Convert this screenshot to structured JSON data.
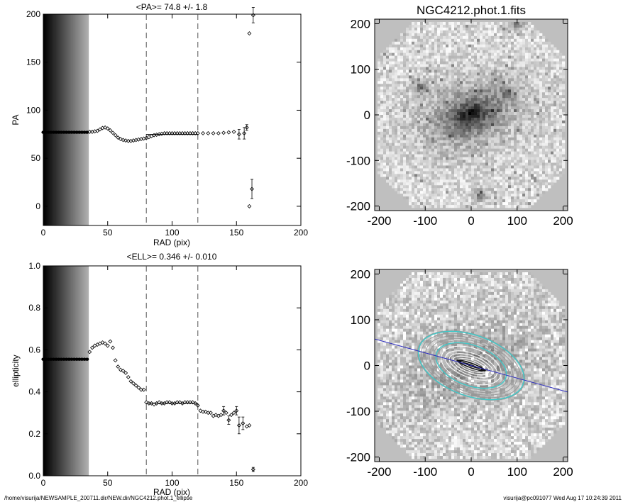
{
  "chart_data": [
    {
      "type": "scatter",
      "title": "<PA>=  74.8 +/-   1.8",
      "xlabel": "RAD (pix)",
      "ylabel": "PA",
      "xlim": [
        0,
        200
      ],
      "ylim": [
        -20,
        200
      ],
      "xticks": [
        "0",
        "50",
        "100",
        "150",
        "200"
      ],
      "yticks": [
        "0",
        "50",
        "100",
        "150",
        "200"
      ],
      "xticks_values": [
        0,
        50,
        100,
        150,
        200
      ],
      "yticks_values": [
        0,
        50,
        100,
        150,
        200
      ],
      "vlines": [
        80,
        120
      ],
      "mean_line": {
        "x": [
          80,
          120
        ],
        "y": 74.8
      },
      "shade_xrange": [
        0,
        35
      ],
      "points": [
        [
          0,
          77
        ],
        [
          2,
          77
        ],
        [
          4,
          77
        ],
        [
          6,
          77
        ],
        [
          8,
          77
        ],
        [
          10,
          77
        ],
        [
          12,
          77
        ],
        [
          14,
          77
        ],
        [
          16,
          77
        ],
        [
          18,
          77
        ],
        [
          20,
          77
        ],
        [
          22,
          77
        ],
        [
          24,
          77
        ],
        [
          26,
          77
        ],
        [
          28,
          77
        ],
        [
          30,
          77
        ],
        [
          32,
          77
        ],
        [
          34,
          77
        ],
        [
          36,
          77.5
        ],
        [
          38,
          77.5
        ],
        [
          40,
          78
        ],
        [
          42,
          78.5
        ],
        [
          44,
          80
        ],
        [
          46,
          81.5
        ],
        [
          48,
          82
        ],
        [
          50,
          81
        ],
        [
          52,
          79
        ],
        [
          54,
          76.5
        ],
        [
          56,
          74
        ],
        [
          58,
          71.5
        ],
        [
          60,
          70
        ],
        [
          62,
          69
        ],
        [
          64,
          68.5
        ],
        [
          66,
          68
        ],
        [
          68,
          68
        ],
        [
          70,
          68.5
        ],
        [
          72,
          69
        ],
        [
          74,
          69.5
        ],
        [
          76,
          70
        ],
        [
          78,
          70.5
        ],
        [
          80,
          71
        ],
        [
          82,
          72
        ],
        [
          84,
          73
        ],
        [
          86,
          74
        ],
        [
          88,
          74.5
        ],
        [
          90,
          75
        ],
        [
          92,
          75.5
        ],
        [
          94,
          76
        ],
        [
          96,
          76
        ],
        [
          98,
          76
        ],
        [
          100,
          76
        ],
        [
          102,
          76
        ],
        [
          104,
          76
        ],
        [
          106,
          76
        ],
        [
          108,
          76
        ],
        [
          110,
          76
        ],
        [
          112,
          76
        ],
        [
          114,
          76
        ],
        [
          116,
          76
        ],
        [
          118,
          76
        ],
        [
          120,
          76
        ],
        [
          124,
          76
        ],
        [
          128,
          76
        ],
        [
          132,
          76
        ],
        [
          136,
          76
        ],
        [
          140,
          76.5
        ],
        [
          144,
          77
        ],
        [
          148,
          77.5
        ],
        [
          152,
          75
        ],
        [
          156,
          76
        ],
        [
          158,
          82
        ],
        [
          160,
          0
        ],
        [
          160,
          180
        ],
        [
          162,
          18
        ],
        [
          163,
          199
        ]
      ],
      "errorbars": [
        [
          152,
          75,
          5
        ],
        [
          156,
          76,
          6
        ],
        [
          158,
          82,
          3
        ],
        [
          162,
          18,
          10
        ],
        [
          163,
          199,
          8
        ]
      ]
    },
    {
      "type": "scatter",
      "title": "<ELL>= 0.346 +/-  0.010",
      "xlabel": "RAD (pix)",
      "ylabel": "ellipticity",
      "xlim": [
        0,
        200
      ],
      "ylim": [
        0.0,
        1.0
      ],
      "xticks": [
        "0",
        "50",
        "100",
        "150",
        "200"
      ],
      "yticks": [
        "0.0",
        "0.2",
        "0.4",
        "0.6",
        "0.8",
        "1.0"
      ],
      "xticks_values": [
        0,
        50,
        100,
        150,
        200
      ],
      "yticks_values": [
        0.0,
        0.2,
        0.4,
        0.6,
        0.8,
        1.0
      ],
      "vlines": [
        80,
        120
      ],
      "mean_line": {
        "x": [
          80,
          120
        ],
        "y": 0.346
      },
      "shade_xrange": [
        0,
        35
      ],
      "points": [
        [
          0,
          0.555
        ],
        [
          2,
          0.555
        ],
        [
          4,
          0.555
        ],
        [
          6,
          0.555
        ],
        [
          8,
          0.555
        ],
        [
          10,
          0.555
        ],
        [
          12,
          0.555
        ],
        [
          14,
          0.555
        ],
        [
          16,
          0.555
        ],
        [
          18,
          0.555
        ],
        [
          20,
          0.555
        ],
        [
          22,
          0.555
        ],
        [
          24,
          0.555
        ],
        [
          26,
          0.555
        ],
        [
          28,
          0.555
        ],
        [
          30,
          0.555
        ],
        [
          32,
          0.555
        ],
        [
          34,
          0.555
        ],
        [
          36,
          0.59
        ],
        [
          38,
          0.61
        ],
        [
          40,
          0.62
        ],
        [
          42,
          0.625
        ],
        [
          44,
          0.63
        ],
        [
          46,
          0.635
        ],
        [
          48,
          0.63
        ],
        [
          50,
          0.62
        ],
        [
          52,
          0.64
        ],
        [
          54,
          0.61
        ],
        [
          56,
          0.55
        ],
        [
          58,
          0.52
        ],
        [
          60,
          0.505
        ],
        [
          62,
          0.5
        ],
        [
          64,
          0.49
        ],
        [
          66,
          0.47
        ],
        [
          68,
          0.45
        ],
        [
          70,
          0.44
        ],
        [
          72,
          0.43
        ],
        [
          74,
          0.42
        ],
        [
          76,
          0.41
        ],
        [
          78,
          0.41
        ],
        [
          80,
          0.35
        ],
        [
          82,
          0.345
        ],
        [
          84,
          0.345
        ],
        [
          86,
          0.34
        ],
        [
          88,
          0.345
        ],
        [
          90,
          0.35
        ],
        [
          92,
          0.345
        ],
        [
          94,
          0.345
        ],
        [
          96,
          0.35
        ],
        [
          98,
          0.35
        ],
        [
          100,
          0.345
        ],
        [
          102,
          0.345
        ],
        [
          104,
          0.35
        ],
        [
          106,
          0.35
        ],
        [
          108,
          0.345
        ],
        [
          110,
          0.35
        ],
        [
          112,
          0.35
        ],
        [
          114,
          0.35
        ],
        [
          116,
          0.35
        ],
        [
          118,
          0.345
        ],
        [
          120,
          0.335
        ],
        [
          122,
          0.31
        ],
        [
          124,
          0.305
        ],
        [
          126,
          0.305
        ],
        [
          128,
          0.3
        ],
        [
          130,
          0.3
        ],
        [
          132,
          0.285
        ],
        [
          134,
          0.29
        ],
        [
          136,
          0.285
        ],
        [
          138,
          0.29
        ],
        [
          140,
          0.31
        ],
        [
          142,
          0.3
        ],
        [
          144,
          0.265
        ],
        [
          146,
          0.29
        ],
        [
          148,
          0.3
        ],
        [
          150,
          0.31
        ],
        [
          152,
          0.24
        ],
        [
          155,
          0.25
        ],
        [
          158,
          0.235
        ],
        [
          160,
          0.24
        ],
        [
          163,
          0.03
        ]
      ],
      "errorbars": [
        [
          140,
          0.31,
          0.02
        ],
        [
          144,
          0.265,
          0.02
        ],
        [
          150,
          0.31,
          0.02
        ],
        [
          152,
          0.24,
          0.04
        ],
        [
          155,
          0.25,
          0.03
        ],
        [
          163,
          0.03,
          0.01
        ]
      ]
    },
    {
      "type": "heatmap",
      "title": "NGC4212.phot.1.fits",
      "xlim": [
        -210,
        210
      ],
      "ylim": [
        -210,
        210
      ],
      "xticks": [
        "-200",
        "-100",
        "0",
        "100",
        "200"
      ],
      "yticks": [
        "-200",
        "-100",
        "0",
        "100",
        "200"
      ],
      "xticks_values": [
        -200,
        -100,
        0,
        100,
        200
      ],
      "yticks_values": [
        -200,
        -100,
        0,
        100,
        200
      ],
      "galaxy": {
        "center": [
          0,
          0
        ],
        "pa_deg": 20,
        "ellipticity": 0.35
      },
      "bright_sources": [
        [
          100,
          200
        ],
        [
          20,
          -175
        ],
        [
          -110,
          60
        ],
        [
          80,
          50
        ]
      ]
    },
    {
      "type": "heatmap",
      "xlim": [
        -210,
        210
      ],
      "ylim": [
        -210,
        210
      ],
      "xticks": [
        "-200",
        "-100",
        "0",
        "100",
        "200"
      ],
      "yticks": [
        "-200",
        "-100",
        "0",
        "100",
        "200"
      ],
      "xticks_values": [
        -200,
        -100,
        0,
        100,
        200
      ],
      "yticks_values": [
        -200,
        -100,
        0,
        100,
        200
      ],
      "major_axis_line": {
        "from": [
          -210,
          58
        ],
        "to": [
          210,
          -58
        ]
      },
      "cyan_ellipses_a": [
        80,
        120
      ],
      "ell_ratio": 0.55,
      "pa_deg": 20
    }
  ],
  "footer": {
    "left": "/home/visurija/NEWSAMPLE_200711.dir/NEW.dir/NGC4212.phot.1_ellipse",
    "right": "visurija@pc091077  Wed Aug 17 10:24:39 2011"
  },
  "colors": {
    "axis": "#000000",
    "cyan": "#40c8c8",
    "blue_line": "#3030c0",
    "bg_gray": "#bfbfbf"
  }
}
